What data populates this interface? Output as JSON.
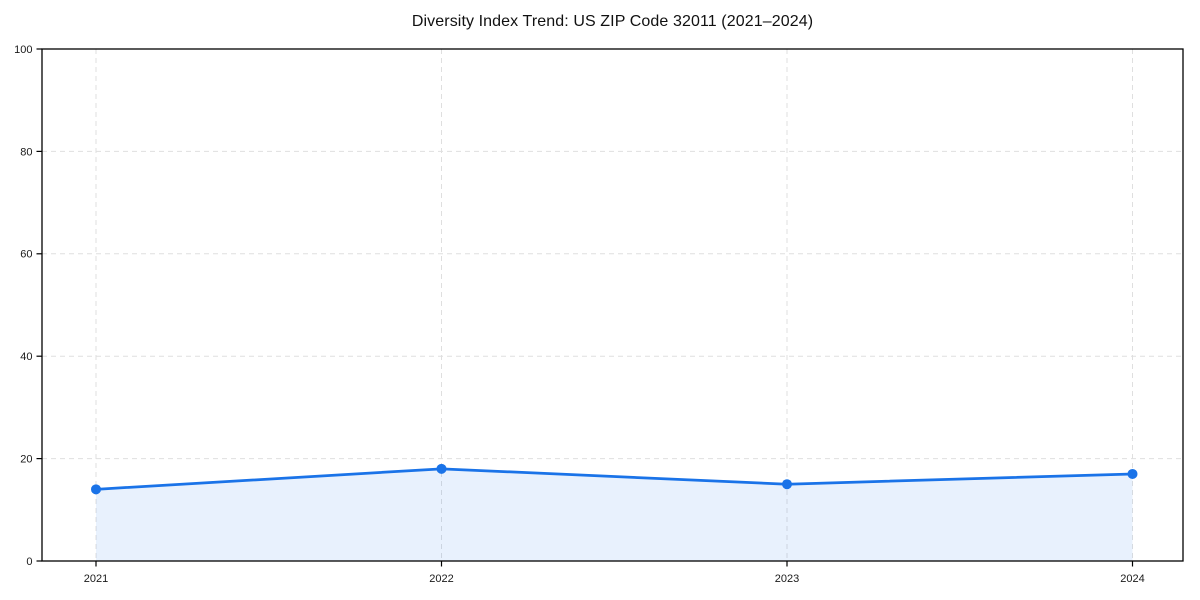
{
  "figure": {
    "title": "Diversity Index Trend: US ZIP Code 32011 (2021–2024)"
  },
  "chart_data": {
    "type": "area",
    "title": "Diversity Index Trend: US ZIP Code 32011 (2021–2024)",
    "categories": [
      "2021",
      "2022",
      "2023",
      "2024"
    ],
    "series": [
      {
        "name": "Diversity Index",
        "values": [
          14,
          18,
          15,
          17
        ]
      }
    ],
    "xlabel": "",
    "ylabel": "",
    "ylim": [
      0,
      100
    ],
    "yticks": [
      0,
      20,
      40,
      60,
      80,
      100
    ],
    "grid": true,
    "grid_style": "dashed",
    "legend_position": "none",
    "line_color": "#1a73e8",
    "marker": "circle",
    "marker_color": "#1a73e8",
    "area_fill_color": "#1a73e8",
    "area_fill_opacity": 0.1,
    "grid_color": "#dfdfdf",
    "axis_color": "#000000",
    "tick_label_color": "#1a1a1a",
    "background_color": "#ffffff"
  }
}
